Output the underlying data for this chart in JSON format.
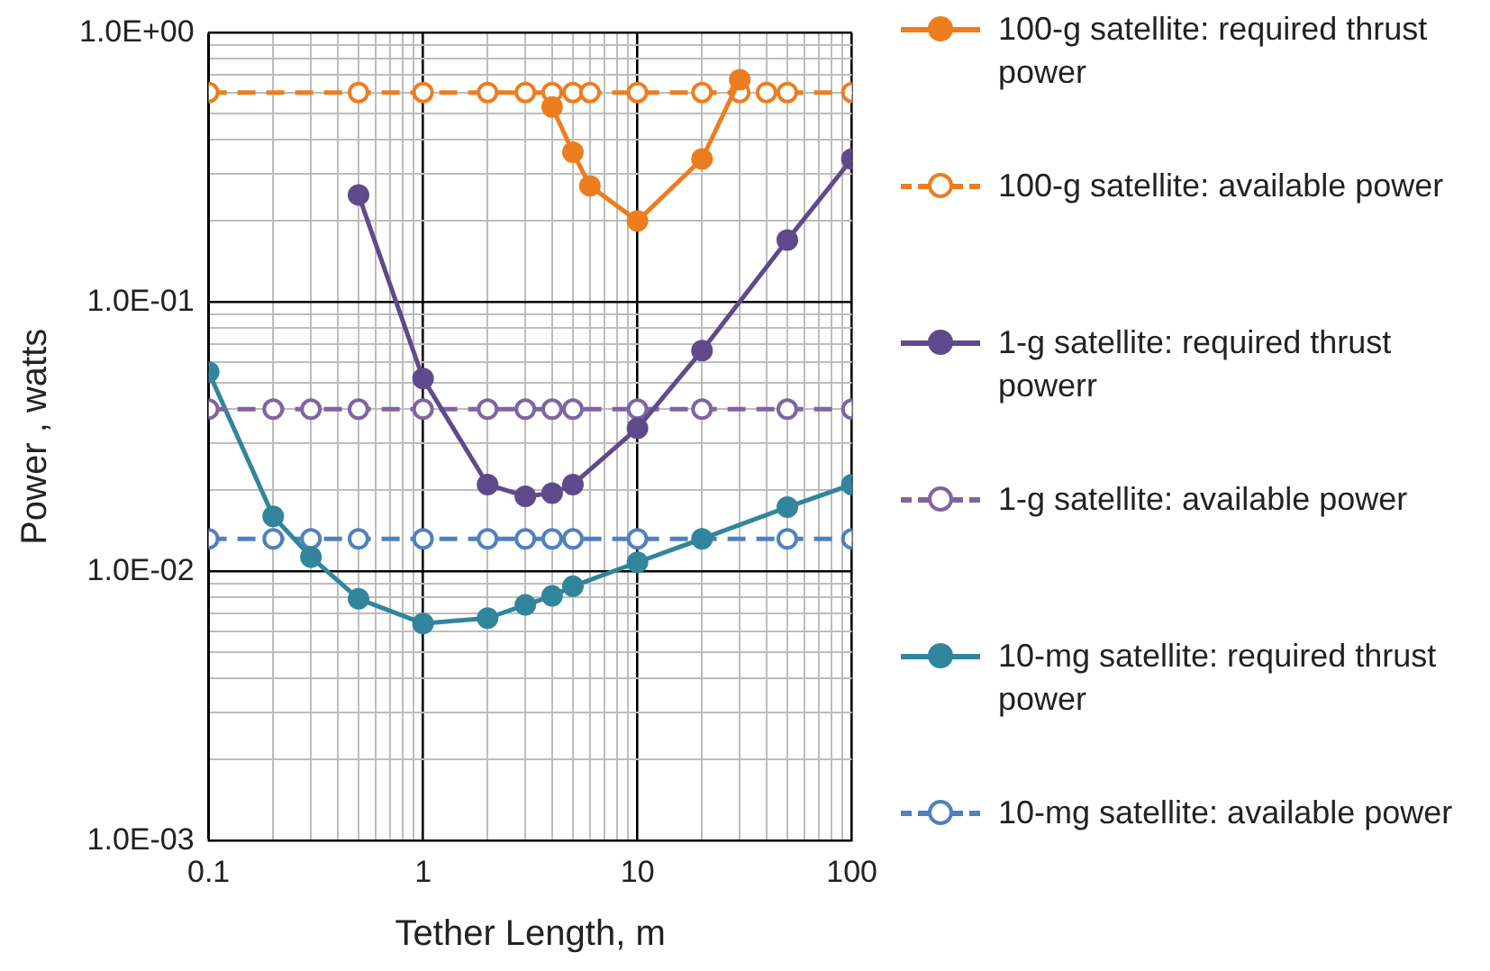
{
  "chart_data": {
    "type": "line",
    "xlabel": "Tether Length, m",
    "ylabel": "Power , watts",
    "log": "xy",
    "grid": true,
    "legend": "right",
    "marker": "circle",
    "xlim": [
      0.1,
      100
    ],
    "ylim": [
      0.001,
      1
    ],
    "xticks": [
      0.1,
      {
        "value": 0.2,
        "label": null
      },
      {
        "value": 0.3,
        "label": null
      },
      {
        "value": 0.4,
        "label": null
      },
      {
        "value": 0.5,
        "label": null
      },
      {
        "value": 0.6,
        "label": null
      },
      {
        "value": 0.7,
        "label": null
      },
      {
        "value": 0.8,
        "label": null
      },
      {
        "value": 0.9,
        "label": null
      },
      1,
      {
        "value": 2,
        "label": null
      },
      {
        "value": 3,
        "label": null
      },
      {
        "value": 4,
        "label": null
      },
      {
        "value": 5,
        "label": null
      },
      {
        "value": 6,
        "label": null
      },
      {
        "value": 7,
        "label": null
      },
      {
        "value": 8,
        "label": null
      },
      {
        "value": 9,
        "label": null
      },
      10,
      {
        "value": 20,
        "label": null
      },
      {
        "value": 30,
        "label": null
      },
      {
        "value": 40,
        "label": null
      },
      {
        "value": 50,
        "label": null
      },
      {
        "value": 60,
        "label": null
      },
      {
        "value": 70,
        "label": null
      },
      {
        "value": 80,
        "label": null
      },
      {
        "value": 90,
        "label": null
      },
      100
    ],
    "yticks": [
      {
        "value": 0.001,
        "label": "1.0E-03"
      },
      {
        "value": 0.002,
        "label": null
      },
      {
        "value": 0.003,
        "label": null
      },
      {
        "value": 0.004,
        "label": null
      },
      {
        "value": 0.005,
        "label": null
      },
      {
        "value": 0.006,
        "label": null
      },
      {
        "value": 0.007,
        "label": null
      },
      {
        "value": 0.008,
        "label": null
      },
      {
        "value": 0.009,
        "label": null
      },
      {
        "value": 0.01,
        "label": "1.0E-02"
      },
      {
        "value": 0.02,
        "label": null
      },
      {
        "value": 0.03,
        "label": null
      },
      {
        "value": 0.04,
        "label": null
      },
      {
        "value": 0.05,
        "label": null
      },
      {
        "value": 0.06,
        "label": null
      },
      {
        "value": 0.07,
        "label": null
      },
      {
        "value": 0.08,
        "label": null
      },
      {
        "value": 0.09,
        "label": null
      },
      {
        "value": 0.1,
        "label": "1.0E-01"
      },
      {
        "value": 0.2,
        "label": null
      },
      {
        "value": 0.3,
        "label": null
      },
      {
        "value": 0.4,
        "label": null
      },
      {
        "value": 0.5,
        "label": null
      },
      {
        "value": 0.6,
        "label": null
      },
      {
        "value": 0.7,
        "label": null
      },
      {
        "value": 0.8,
        "label": null
      },
      {
        "value": 0.9,
        "label": null
      },
      {
        "value": 1,
        "label": "1.0E+00"
      }
    ],
    "series": [
      {
        "name": "100-g satellite: required thrust power",
        "color": "#ed7d1f",
        "line_style": "solid",
        "x": [
          4,
          5,
          6,
          10,
          20,
          30
        ],
        "values": [
          0.53,
          0.36,
          0.27,
          0.2,
          0.34,
          0.67
        ]
      },
      {
        "name": "100-g satellite: available power",
        "color": "#ed7d1f",
        "line_style": "dashed",
        "x": [
          0.1,
          0.5,
          1,
          2,
          3,
          4,
          5,
          6,
          10,
          20,
          30,
          40,
          50,
          100
        ],
        "values": [
          0.6,
          0.6,
          0.6,
          0.6,
          0.6,
          0.6,
          0.6,
          0.6,
          0.6,
          0.6,
          0.6,
          0.6,
          0.6,
          0.6
        ]
      },
      {
        "name": "1-g satellite: required thrust powerr",
        "color": "#5f4a8b",
        "line_style": "solid",
        "x": [
          0.5,
          1,
          2,
          3,
          4,
          5,
          10,
          20,
          50,
          100
        ],
        "values": [
          0.25,
          0.052,
          0.021,
          0.019,
          0.0195,
          0.021,
          0.034,
          0.066,
          0.17,
          0.34
        ]
      },
      {
        "name": "1-g satellite: available power",
        "color": "#8064a2",
        "line_style": "dashed",
        "x": [
          0.1,
          0.2,
          0.3,
          0.5,
          1,
          2,
          3,
          4,
          5,
          10,
          20,
          50,
          100
        ],
        "values": [
          0.04,
          0.04,
          0.04,
          0.04,
          0.04,
          0.04,
          0.04,
          0.04,
          0.04,
          0.04,
          0.04,
          0.04,
          0.04
        ]
      },
      {
        "name": "10-mg satellite: required thrust power",
        "color": "#31859c",
        "line_style": "solid",
        "x": [
          0.1,
          0.2,
          0.3,
          0.5,
          1,
          2,
          3,
          4,
          5,
          10,
          20,
          50,
          100
        ],
        "values": [
          0.055,
          0.016,
          0.0113,
          0.0079,
          0.0064,
          0.0067,
          0.0075,
          0.0081,
          0.0088,
          0.0108,
          0.0132,
          0.0173,
          0.021
        ]
      },
      {
        "name": "10-mg satellite: available power",
        "color": "#4f81bd",
        "line_style": "dashed",
        "x": [
          0.1,
          0.2,
          0.3,
          0.5,
          1,
          2,
          3,
          4,
          5,
          10,
          20,
          50,
          100
        ],
        "values": [
          0.0132,
          0.0132,
          0.0132,
          0.0132,
          0.0132,
          0.0132,
          0.0132,
          0.0132,
          0.0132,
          0.0132,
          null,
          0.0132,
          0.0132
        ]
      }
    ]
  }
}
